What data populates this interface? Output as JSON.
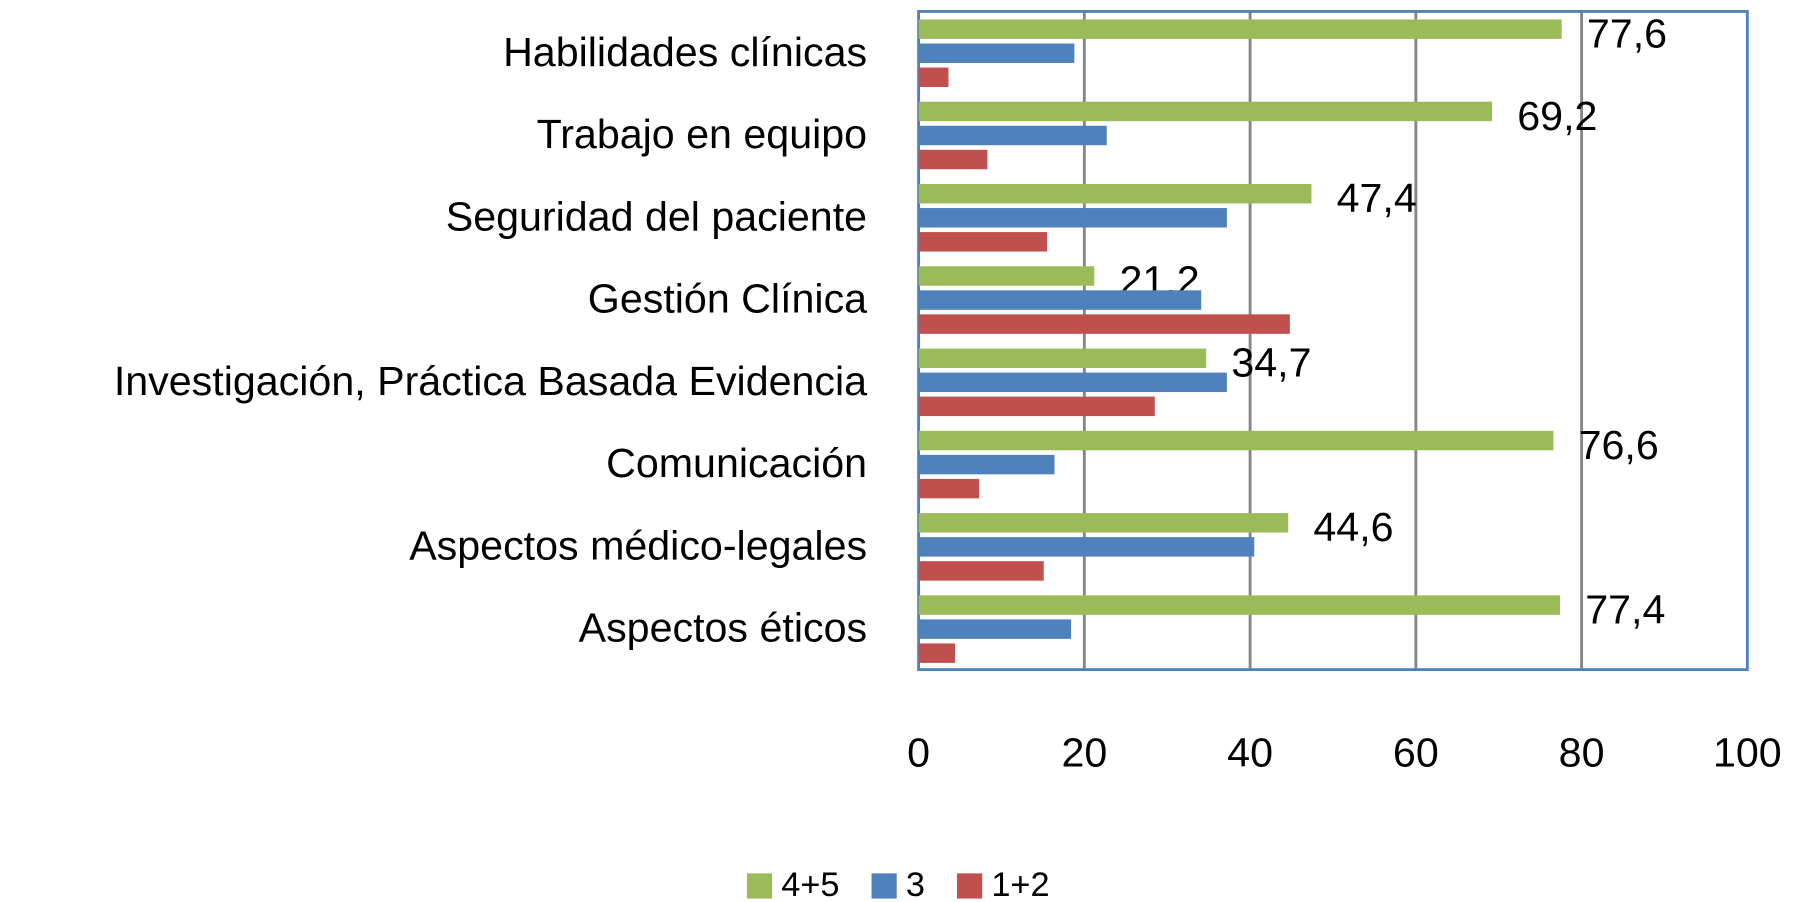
{
  "chart_data": {
    "type": "barh",
    "categories": [
      "Habilidades clínicas",
      "Trabajo en equipo",
      "Seguridad del paciente",
      "Gestión Clínica",
      "Investigación, Práctica Basada Evidencia",
      "Comunicación",
      "Aspectos médico-legales",
      "Aspectos éticos"
    ],
    "series": [
      {
        "name": "4+5",
        "color": "#9bbb59",
        "values": [
          77.6,
          69.2,
          47.4,
          21.2,
          34.7,
          76.6,
          44.6,
          77.4
        ],
        "value_labels": [
          "77,6",
          "69,2",
          "47,4",
          "21,2",
          "34,7",
          "76,6",
          "44,6",
          "77,4"
        ]
      },
      {
        "name": "3",
        "color": "#4f81bd",
        "values": [
          18.8,
          22.7,
          37.2,
          34.1,
          37.2,
          16.4,
          40.5,
          18.4
        ]
      },
      {
        "name": "1+2",
        "color": "#c0504d",
        "values": [
          3.6,
          8.3,
          15.5,
          44.8,
          28.5,
          7.3,
          15.1,
          4.4
        ]
      }
    ],
    "xlim": [
      0,
      100
    ],
    "xticks": [
      0,
      20,
      40,
      60,
      80,
      100
    ],
    "grid": true,
    "legend": "bottom"
  }
}
